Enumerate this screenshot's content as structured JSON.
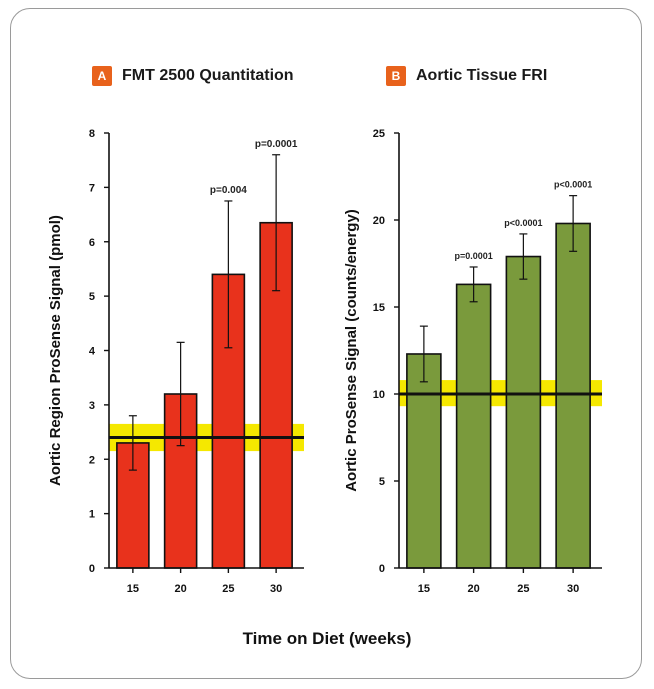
{
  "x_axis_title": "Time on Diet  (weeks)",
  "colors": {
    "badge": "#e8621c",
    "bar_a": "#e8321c",
    "bar_b": "#7a9a3c",
    "band": "#f5e800",
    "border": "#9a9a9a"
  },
  "chart_data": [
    {
      "panel_letter": "A",
      "title": "FMT 2500 Quantitation",
      "type": "bar",
      "categories": [
        "15",
        "20",
        "25",
        "30"
      ],
      "values": [
        2.3,
        3.2,
        5.4,
        6.35
      ],
      "error": [
        0.5,
        0.95,
        1.35,
        1.25
      ],
      "annotations": [
        "",
        "",
        "p=0.004",
        "p=0.0001"
      ],
      "ylabel": "Aortic Region ProSense Signal (pmol)",
      "ylim": [
        0,
        8
      ],
      "yticks": [
        0,
        1,
        2,
        3,
        4,
        5,
        6,
        7,
        8
      ],
      "baseline": 2.4,
      "band": [
        2.15,
        2.65
      ]
    },
    {
      "panel_letter": "B",
      "title": "Aortic Tissue FRI",
      "type": "bar",
      "categories": [
        "15",
        "20",
        "25",
        "30"
      ],
      "values": [
        12.3,
        16.3,
        17.9,
        19.8
      ],
      "error": [
        1.6,
        1.0,
        1.3,
        1.6
      ],
      "annotations": [
        "",
        "p=0.0001",
        "p<0.0001",
        "p<0.0001"
      ],
      "ylabel": "Aortic ProSense Signal (counts/energy)",
      "ylim": [
        0,
        25
      ],
      "yticks": [
        0,
        5,
        10,
        15,
        20,
        25
      ],
      "baseline": 10,
      "band": [
        9.3,
        10.8
      ]
    }
  ]
}
